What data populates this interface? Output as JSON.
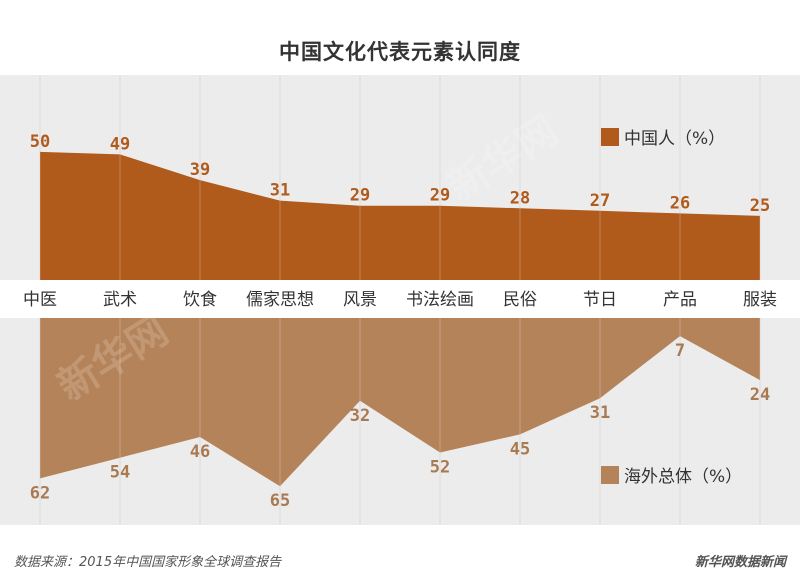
{
  "chart_data": {
    "type": "area",
    "title": "中国文化代表元素认同度",
    "categories": [
      "中医",
      "武术",
      "饮食",
      "儒家思想",
      "风景",
      "书法绘画",
      "民俗",
      "节日",
      "产品",
      "服装"
    ],
    "series": [
      {
        "name": "中国人（%）",
        "values": [
          50,
          49,
          39,
          31,
          29,
          29,
          28,
          27,
          26,
          25
        ],
        "color": "#b05a1b"
      },
      {
        "name": "海外总体（%）",
        "values": [
          62,
          54,
          46,
          65,
          32,
          52,
          45,
          31,
          7,
          24
        ],
        "color": "#b5835a"
      }
    ],
    "upper_ylim": [
      0,
      80
    ],
    "lower_ylim": [
      0,
      80
    ],
    "lower_inverted": true
  },
  "source_note": "数据来源：2015年中国国家形象全球调查报告",
  "brand": "新华网数据新闻",
  "watermark_text": "新华网"
}
